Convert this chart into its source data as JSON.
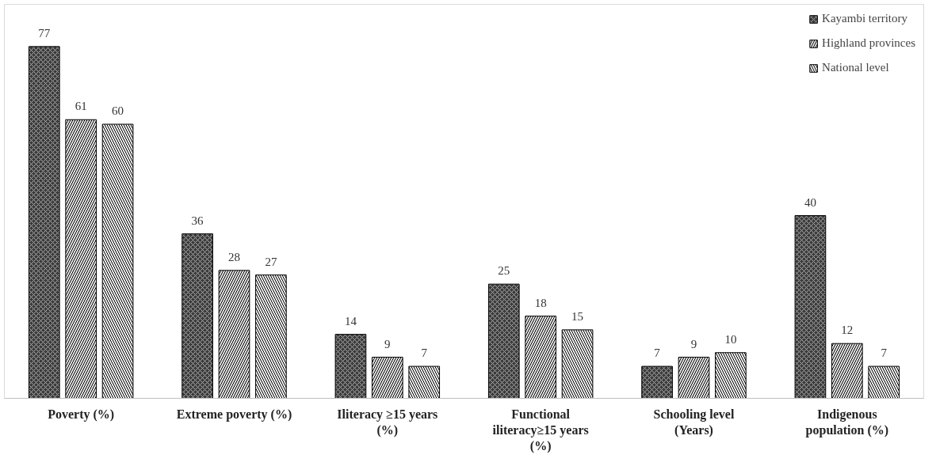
{
  "chart_data": {
    "type": "bar",
    "categories": [
      "Poverty (%)",
      "Extreme poverty (%)",
      "Iliteracy ≥15 years (%)",
      "Functional iliteracy≥15 years (%)",
      "Schooling level (Years)",
      "Indigenous population (%)"
    ],
    "series": [
      {
        "name": "Kayambi territory",
        "color": "#3c3c3c",
        "values": [
          77,
          36,
          14,
          25,
          7,
          40
        ]
      },
      {
        "name": "Highland provinces",
        "color": "#e6e6e6",
        "values": [
          61,
          28,
          9,
          18,
          9,
          12
        ]
      },
      {
        "name": "National level",
        "color": "#f2f2f2",
        "values": [
          60,
          27,
          7,
          15,
          10,
          7
        ]
      }
    ],
    "data_labels": true,
    "legend": "top right",
    "grid": false,
    "tick_labels": "x"
  }
}
